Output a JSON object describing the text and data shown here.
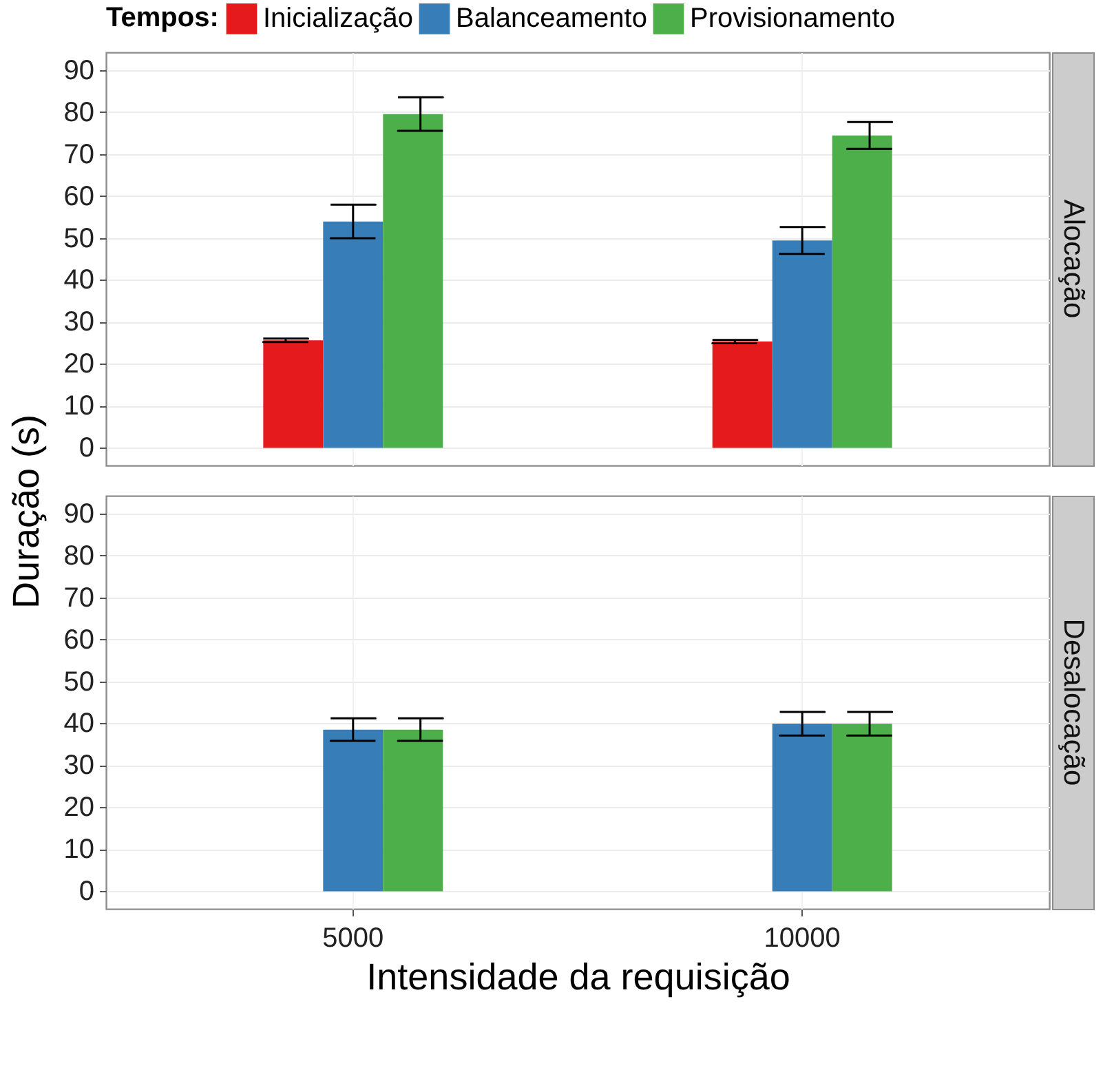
{
  "chart_data": [
    {
      "type": "bar",
      "title": "Alocação",
      "ylabel": "Duração (s)",
      "legend_title": "Tempos:",
      "legend": "top",
      "categories": [
        "5000",
        "10000"
      ],
      "ylim": [
        -4.2,
        94.2
      ],
      "yticks": [
        0,
        10,
        20,
        30,
        40,
        50,
        60,
        70,
        80,
        90
      ],
      "grid": true,
      "tick_labels": "y",
      "series": [
        {
          "name": "Inicialização",
          "color": "#e41a1c",
          "values": [
            25.6,
            25.3
          ],
          "errors": [
            0.4,
            0.4
          ]
        },
        {
          "name": "Balanceamento",
          "color": "#377eb8",
          "values": [
            53.9,
            49.4
          ],
          "errors": [
            4.0,
            3.2
          ]
        },
        {
          "name": "Provisionamento",
          "color": "#4daf4a",
          "values": [
            79.5,
            74.4
          ],
          "errors": [
            4.0,
            3.2
          ]
        }
      ]
    },
    {
      "type": "bar",
      "title": "Desalocação",
      "xlabel": "Intensidade da requisição",
      "categories": [
        "5000",
        "10000"
      ],
      "ylim": [
        -4.2,
        94.2
      ],
      "yticks": [
        0,
        10,
        20,
        30,
        40,
        50,
        60,
        70,
        80,
        90
      ],
      "grid": true,
      "series": [
        {
          "color": "#e41a1c",
          "values": [
            null,
            null
          ],
          "errors": [
            null,
            null
          ]
        },
        {
          "color": "#377eb8",
          "values": [
            38.5,
            39.9
          ],
          "errors": [
            2.7,
            2.8
          ]
        },
        {
          "color": "#4daf4a",
          "values": [
            38.5,
            39.9
          ],
          "errors": [
            2.7,
            2.8
          ]
        }
      ]
    }
  ]
}
